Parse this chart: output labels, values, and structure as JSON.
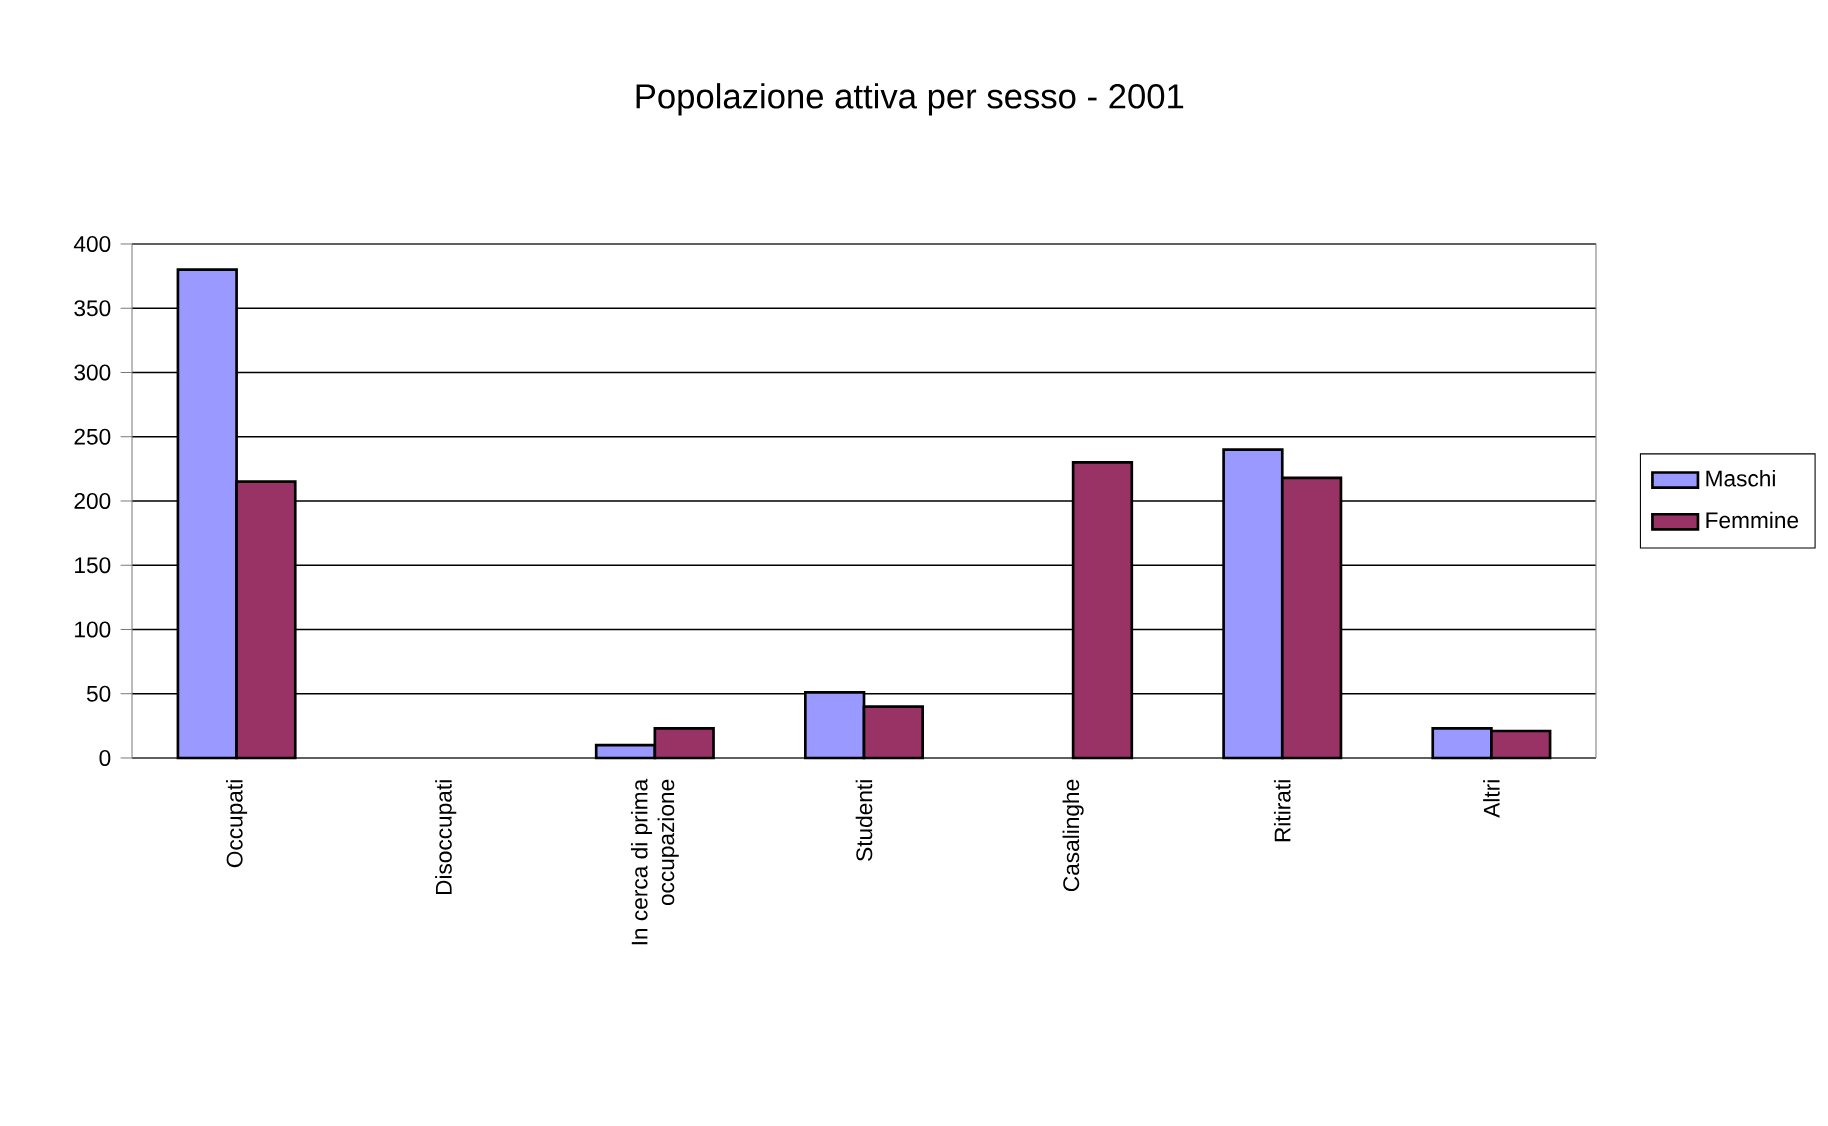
{
  "chart_data": {
    "type": "bar",
    "title": "Popolazione attiva per sesso - 2001",
    "categories": [
      "Occupati",
      "Disoccupati",
      "In cerca di prima occupazione",
      "Studenti",
      "Casalinghe",
      "Ritirati",
      "Altri"
    ],
    "series": [
      {
        "name": "Maschi",
        "color": "#9999ff",
        "values": [
          380,
          0,
          10,
          51,
          0,
          240,
          23
        ]
      },
      {
        "name": "Femmine",
        "color": "#993366",
        "values": [
          215,
          0,
          23,
          40,
          230,
          218,
          21
        ]
      }
    ],
    "ylim": [
      0,
      400
    ],
    "yticks": [
      0,
      50,
      100,
      150,
      200,
      250,
      300,
      350,
      400
    ],
    "grid": "y",
    "legend": "right"
  }
}
